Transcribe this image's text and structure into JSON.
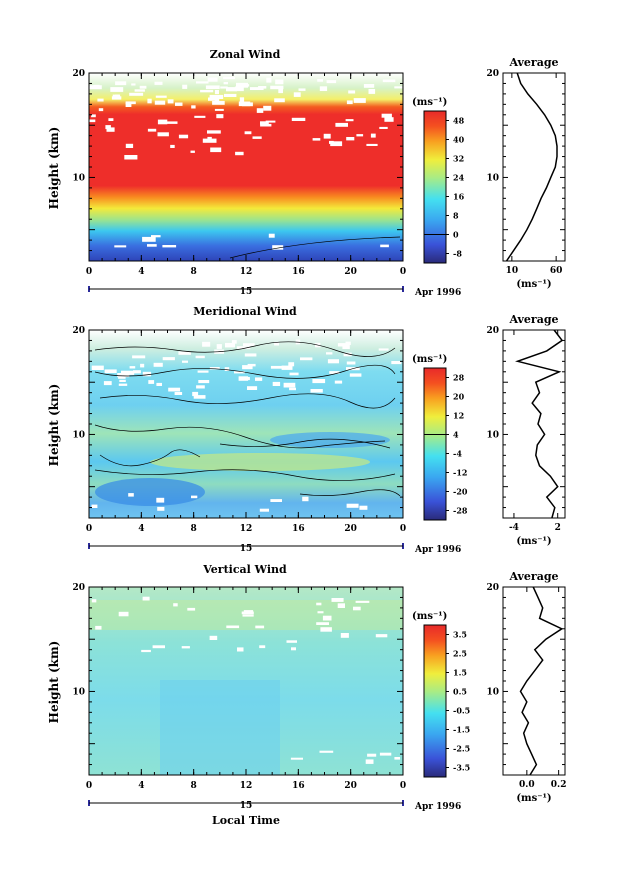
{
  "chart_data": [
    {
      "type": "heatmap",
      "title": "Zonal Wind",
      "ylabel": "Height (km)",
      "ylim": [
        2,
        20
      ],
      "y_ticks": [
        "20",
        "10"
      ],
      "xlim": [
        0,
        24
      ],
      "x_tick_labels": [
        "0",
        "4",
        "8",
        "12",
        "16",
        "20",
        "0"
      ],
      "date_day_label": "15",
      "date_month_label": "Apr 1996",
      "colorbar": {
        "unit": "(ms⁻¹)",
        "levels": [
          "48",
          "40",
          "32",
          "24",
          "16",
          "8",
          "0",
          "-8"
        ],
        "vmin": -12,
        "vmax": 52
      },
      "profile": {
        "title": "Average",
        "x_tick_labels": [
          "10",
          "60"
        ],
        "xlim": [
          0,
          70
        ],
        "xlabel": "(ms⁻¹)",
        "y_tick_labels": [
          "20",
          "10"
        ],
        "heights": [
          2,
          3,
          4,
          5,
          6,
          7,
          8,
          9,
          10,
          11,
          12,
          13,
          14,
          15,
          16,
          17,
          18,
          19,
          20
        ],
        "values": [
          4,
          12,
          20,
          27,
          33,
          38,
          43,
          49,
          54,
          59,
          61,
          61,
          59,
          54,
          47,
          38,
          28,
          20,
          16
        ]
      }
    },
    {
      "type": "heatmap",
      "title": "Meridional Wind",
      "ylabel": "Height (km)",
      "ylim": [
        2,
        20
      ],
      "y_ticks": [
        "20",
        "10"
      ],
      "xlim": [
        0,
        24
      ],
      "x_tick_labels": [
        "0",
        "4",
        "8",
        "12",
        "16",
        "20",
        "0"
      ],
      "date_day_label": "15",
      "date_month_label": "Apr 1996",
      "colorbar": {
        "unit": "(ms⁻¹)",
        "levels": [
          "28",
          "20",
          "12",
          "4",
          "-4",
          "-12",
          "-20",
          "-28"
        ],
        "vmin": -32,
        "vmax": 32
      },
      "profile": {
        "title": "Average",
        "x_tick_labels": [
          "-4",
          "2"
        ],
        "xlim": [
          -5.5,
          3
        ],
        "xlabel": "(ms⁻¹)",
        "y_tick_labels": [
          "20",
          "10"
        ],
        "heights": [
          2,
          3,
          4,
          5,
          6,
          7,
          8,
          9,
          10,
          11,
          12,
          13,
          14,
          15,
          16,
          17,
          18,
          19,
          20
        ],
        "values": [
          1.2,
          1.6,
          0.5,
          2.0,
          1.0,
          -0.5,
          -1.0,
          -0.8,
          0.2,
          -0.7,
          -0.3,
          -1.5,
          -0.5,
          -1.0,
          2.2,
          -3.5,
          0.5,
          2.6,
          1.5
        ]
      }
    },
    {
      "type": "heatmap",
      "title": "Vertical Wind",
      "ylabel": "Height (km)",
      "xlabel": "Local Time",
      "ylim": [
        2,
        20
      ],
      "y_ticks": [
        "20",
        "10"
      ],
      "xlim": [
        0,
        24
      ],
      "x_tick_labels": [
        "0",
        "4",
        "8",
        "12",
        "16",
        "20",
        "0"
      ],
      "date_day_label": "15",
      "date_month_label": "Apr 1996",
      "colorbar": {
        "unit": "(ms⁻¹)",
        "levels": [
          "3.5",
          "2.5",
          "1.5",
          "0.5",
          "-0.5",
          "-1.5",
          "-2.5",
          "-3.5"
        ],
        "vmin": -4,
        "vmax": 4
      },
      "profile": {
        "title": "Average",
        "x_tick_labels": [
          "0.0",
          "0.2"
        ],
        "xlim": [
          -0.15,
          0.24
        ],
        "xlabel": "(ms⁻¹)",
        "y_tick_labels": [
          "20",
          "10"
        ],
        "heights": [
          2,
          3,
          4,
          5,
          6,
          7,
          8,
          9,
          10,
          11,
          12,
          13,
          14,
          15,
          16,
          17,
          18,
          19,
          20
        ],
        "values": [
          0.02,
          0.06,
          0.03,
          0.0,
          -0.02,
          0.01,
          -0.03,
          0.0,
          -0.04,
          0.0,
          0.05,
          0.1,
          0.05,
          0.12,
          0.22,
          0.08,
          0.1,
          0.07,
          0.04
        ]
      }
    }
  ]
}
